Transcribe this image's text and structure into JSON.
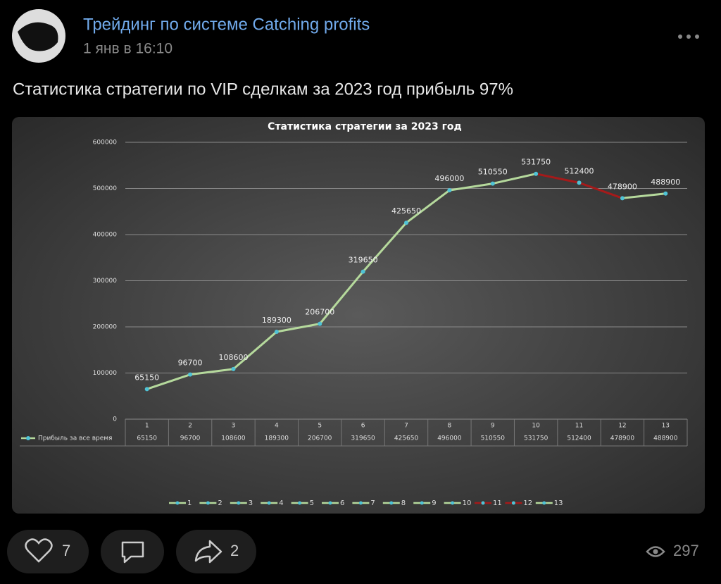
{
  "post": {
    "author": "Трейдинг по системе Catching profits",
    "time": "1 янв в 16:10",
    "text": "Статистика стратегии по VIP сделкам за 2023 год прибыль 97%",
    "likes": 7,
    "shares": 2,
    "views": 297
  },
  "chart_data": {
    "type": "line",
    "title": "Статистика стратегии за 2023 год",
    "categories": [
      "1",
      "2",
      "3",
      "4",
      "5",
      "6",
      "7",
      "8",
      "9",
      "10",
      "11",
      "12",
      "13"
    ],
    "series": [
      {
        "name": "Прибыль за все время",
        "color": "#b5d99c",
        "marker_color": "#4fc3d6",
        "values": [
          65150,
          96700,
          108600,
          189300,
          206700,
          319650,
          425650,
          496000,
          510550,
          531750,
          512400,
          478900,
          488900
        ]
      }
    ],
    "category_colors": [
      "#b5d99c",
      "#b5d99c",
      "#b5d99c",
      "#b5d99c",
      "#b5d99c",
      "#b5d99c",
      "#b5d99c",
      "#b5d99c",
      "#b5d99c",
      "#b5d99c",
      "#a51a1a",
      "#a51a1a",
      "#b5d99c"
    ],
    "ylim": [
      0,
      600000
    ],
    "yticks": [
      0,
      100000,
      200000,
      300000,
      400000,
      500000,
      600000
    ],
    "grid": true,
    "data_table": true,
    "legend": "bottom"
  }
}
